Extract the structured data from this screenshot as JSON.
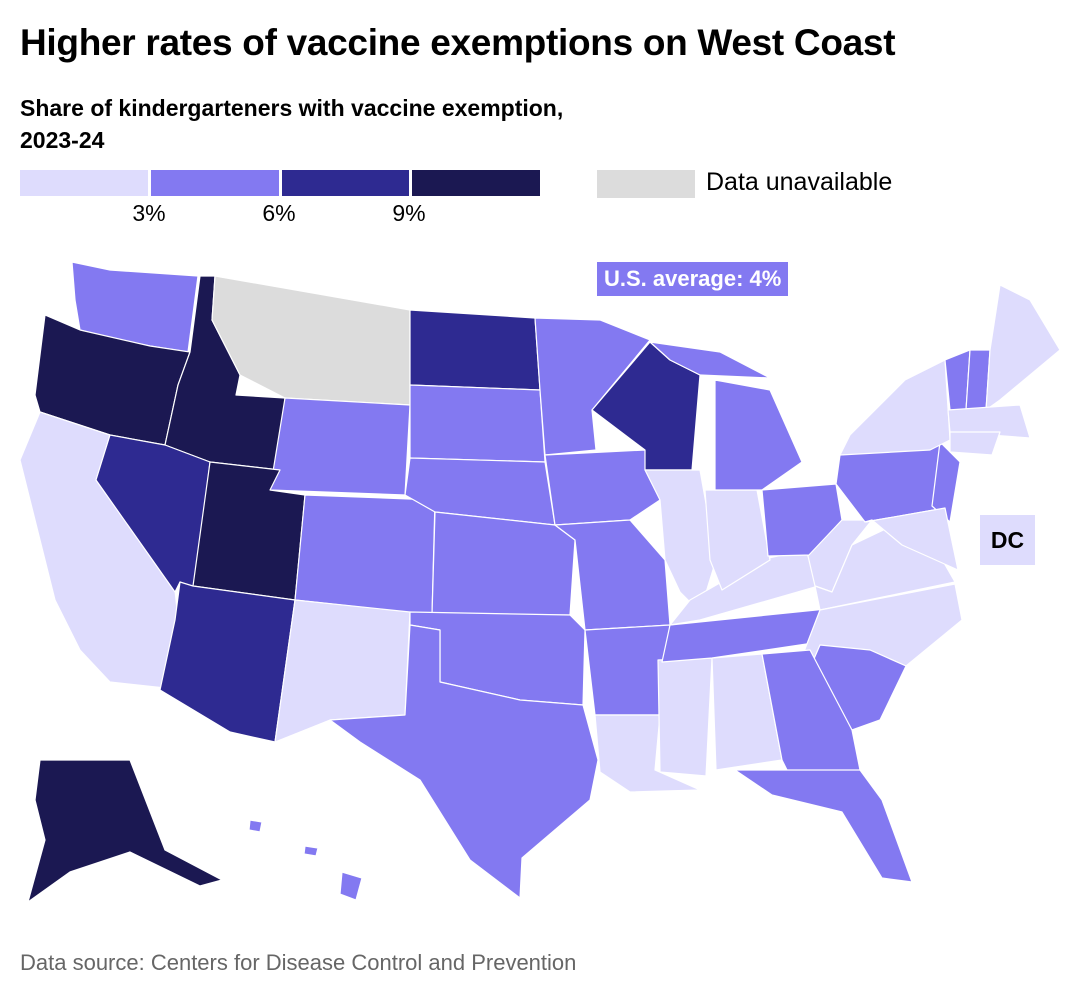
{
  "title": "Higher rates of vaccine exemptions on West Coast",
  "subtitle": "Share of kindergarteners with vaccine exemption, 2023-24",
  "legend": {
    "bins": [
      {
        "range": "under 3%",
        "color": "#dedcfd"
      },
      {
        "range": "3% to 6%",
        "color": "#8379f1"
      },
      {
        "range": "6% to 9%",
        "color": "#2e2a91"
      },
      {
        "range": "9% and above",
        "color": "#1b1852"
      }
    ],
    "ticks": [
      "3%",
      "6%",
      "9%"
    ],
    "unavailable_label": "Data unavailable",
    "unavailable_color": "#dcdcdc"
  },
  "annotation": "U.S. average: 4%",
  "dc_label": "DC",
  "source": "Data source: Centers for Disease Control and Prevention",
  "chart_data": {
    "type": "choropleth",
    "bins": [
      "<3%",
      "3-6%",
      "6-9%",
      "9%+"
    ],
    "states": {
      "OR": "9%+",
      "ID": "9%+",
      "UT": "9%+",
      "AK": "9%+",
      "NV": "6-9%",
      "AZ": "6-9%",
      "ND": "6-9%",
      "WI": "6-9%",
      "WA": "3-6%",
      "WY": "3-6%",
      "CO": "3-6%",
      "SD": "3-6%",
      "NE": "3-6%",
      "KS": "3-6%",
      "OK": "3-6%",
      "TX": "3-6%",
      "MN": "3-6%",
      "IA": "3-6%",
      "MO": "3-6%",
      "AR": "3-6%",
      "TN": "3-6%",
      "MI": "3-6%",
      "OH": "3-6%",
      "GA": "3-6%",
      "SC": "3-6%",
      "FL": "3-6%",
      "PA": "3-6%",
      "NJ": "3-6%",
      "VT": "3-6%",
      "NH": "3-6%",
      "HI": "3-6%",
      "CA": "<3%",
      "NM": "<3%",
      "LA": "<3%",
      "MS": "<3%",
      "AL": "<3%",
      "IL": "<3%",
      "IN": "<3%",
      "KY": "<3%",
      "WV": "<3%",
      "VA": "<3%",
      "NC": "<3%",
      "MD": "<3%",
      "DE": "<3%",
      "NY": "<3%",
      "ME": "<3%",
      "MA": "<3%",
      "CT": "<3%",
      "RI": "<3%",
      "DC": "<3%",
      "MT": "unavailable"
    },
    "us_average": "4%"
  }
}
